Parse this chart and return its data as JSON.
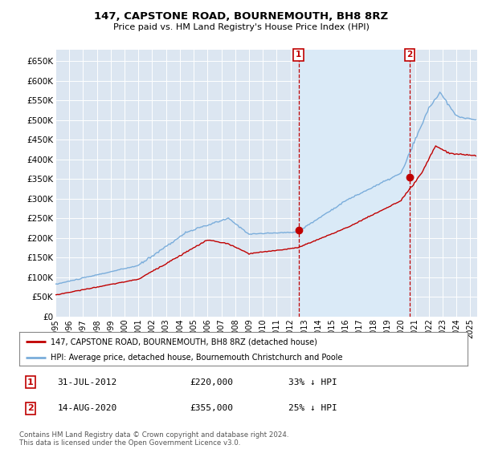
{
  "title": "147, CAPSTONE ROAD, BOURNEMOUTH, BH8 8RZ",
  "subtitle": "Price paid vs. HM Land Registry's House Price Index (HPI)",
  "background_color": "#dce6f1",
  "ylim": [
    0,
    680000
  ],
  "yticks": [
    0,
    50000,
    100000,
    150000,
    200000,
    250000,
    300000,
    350000,
    400000,
    450000,
    500000,
    550000,
    600000,
    650000
  ],
  "ytick_labels": [
    "£0",
    "£50K",
    "£100K",
    "£150K",
    "£200K",
    "£250K",
    "£300K",
    "£350K",
    "£400K",
    "£450K",
    "£500K",
    "£550K",
    "£600K",
    "£650K"
  ],
  "hpi_color": "#7aaddb",
  "price_color": "#c00000",
  "marker_color": "#c00000",
  "shade_color": "#daeaf7",
  "transaction1": {
    "label": "1",
    "date": "31-JUL-2012",
    "price": 220000,
    "pct": "33% ↓ HPI",
    "x": 2012.58
  },
  "transaction2": {
    "label": "2",
    "date": "14-AUG-2020",
    "price": 355000,
    "pct": "25% ↓ HPI",
    "x": 2020.62
  },
  "legend_line1": "147, CAPSTONE ROAD, BOURNEMOUTH, BH8 8RZ (detached house)",
  "legend_line2": "HPI: Average price, detached house, Bournemouth Christchurch and Poole",
  "copyright_text": "Contains HM Land Registry data © Crown copyright and database right 2024.\nThis data is licensed under the Open Government Licence v3.0.",
  "xlim": [
    1995.0,
    2025.5
  ],
  "xticks": [
    1995,
    1996,
    1997,
    1998,
    1999,
    2000,
    2001,
    2002,
    2003,
    2004,
    2005,
    2006,
    2007,
    2008,
    2009,
    2010,
    2011,
    2012,
    2013,
    2014,
    2015,
    2016,
    2017,
    2018,
    2019,
    2020,
    2021,
    2022,
    2023,
    2024,
    2025
  ]
}
